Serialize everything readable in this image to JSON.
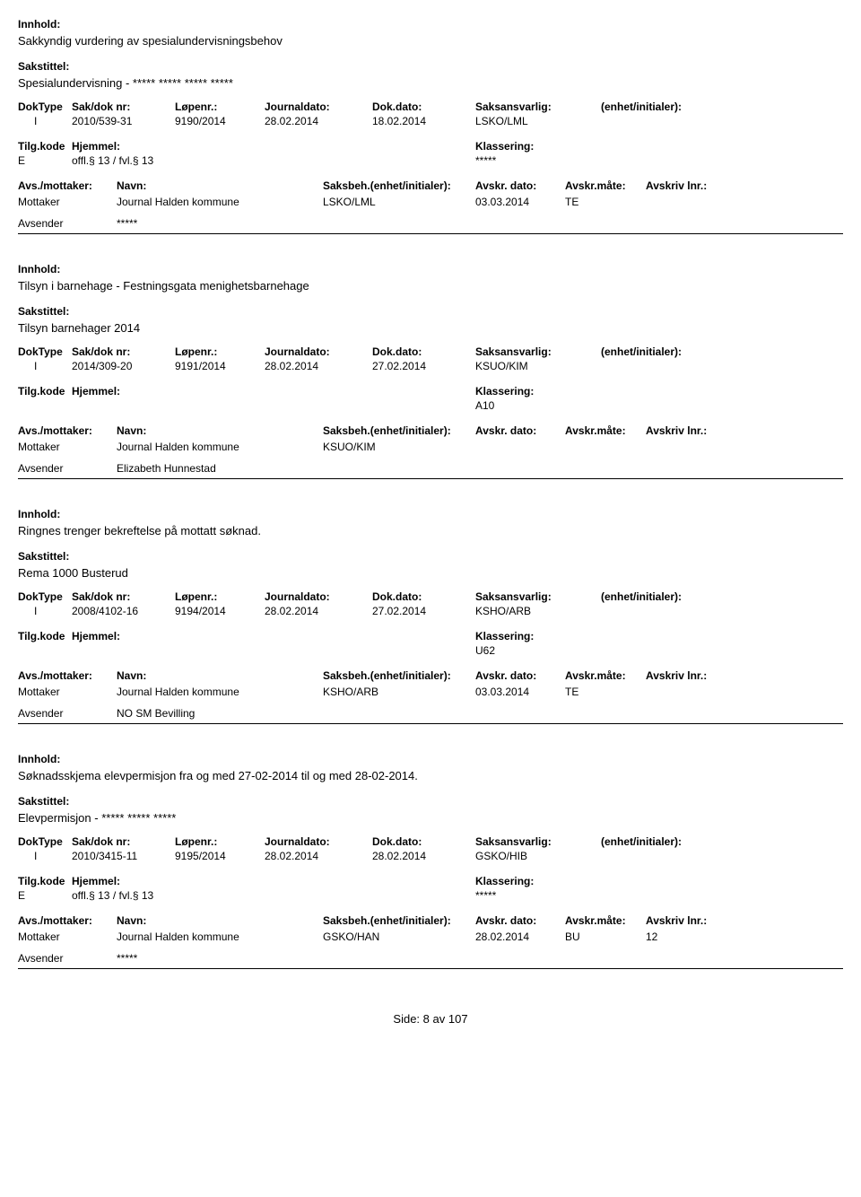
{
  "labels": {
    "innhold": "Innhold:",
    "sakstittel": "Sakstittel:",
    "doktype": "DokType",
    "saknr": "Sak/dok nr:",
    "lopenr": "Løpenr.:",
    "journaldato": "Journaldato:",
    "dokdato": "Dok.dato:",
    "saksansvarlig": "Saksansvarlig:",
    "enhet": "(enhet/initialer):",
    "tilgkode": "Tilg.kode",
    "hjemmel": "Hjemmel:",
    "klassering": "Klassering:",
    "avsmottaker": "Avs./mottaker:",
    "navn": "Navn:",
    "saksbeh": "Saksbeh.(enhet/initialer):",
    "avskrdato": "Avskr. dato:",
    "avskrmate": "Avskr.måte:",
    "avskrlnr": "Avskriv lnr.:",
    "mottaker": "Mottaker",
    "avsender": "Avsender"
  },
  "entries": [
    {
      "innhold": "Sakkyndig vurdering av spesialundervisningsbehov",
      "sakstittel": "Spesialundervisning - ***** ***** ***** *****",
      "doktype": "I",
      "saknr": "2010/539-31",
      "lopenr": "9190/2014",
      "journaldato": "28.02.2014",
      "dokdato": "18.02.2014",
      "saksansvarlig": "LSKO/LML",
      "tilgkode": "E",
      "hjemmel": "offl.§ 13 / fvl.§ 13",
      "klassering": "*****",
      "mottaker_navn": "Journal Halden kommune",
      "mottaker_saksbeh": "LSKO/LML",
      "mottaker_avskrdato": "03.03.2014",
      "mottaker_avskrmate": "TE",
      "mottaker_avskrlnr": "",
      "avsender_navn": "*****"
    },
    {
      "innhold": "Tilsyn i barnehage - Festningsgata menighetsbarnehage",
      "sakstittel": "Tilsyn barnehager 2014",
      "doktype": "I",
      "saknr": "2014/309-20",
      "lopenr": "9191/2014",
      "journaldato": "28.02.2014",
      "dokdato": "27.02.2014",
      "saksansvarlig": "KSUO/KIM",
      "tilgkode": "",
      "hjemmel": "",
      "klassering": "A10",
      "mottaker_navn": "Journal Halden kommune",
      "mottaker_saksbeh": "KSUO/KIM",
      "mottaker_avskrdato": "",
      "mottaker_avskrmate": "",
      "mottaker_avskrlnr": "",
      "avsender_navn": "Elizabeth  Hunnestad"
    },
    {
      "innhold": "Ringnes trenger bekreftelse på mottatt søknad.",
      "sakstittel": "Rema 1000 Busterud",
      "doktype": "I",
      "saknr": "2008/4102-16",
      "lopenr": "9194/2014",
      "journaldato": "28.02.2014",
      "dokdato": "27.02.2014",
      "saksansvarlig": "KSHO/ARB",
      "tilgkode": "",
      "hjemmel": "",
      "klassering": "U62",
      "mottaker_navn": "Journal Halden kommune",
      "mottaker_saksbeh": "KSHO/ARB",
      "mottaker_avskrdato": "03.03.2014",
      "mottaker_avskrmate": "TE",
      "mottaker_avskrlnr": "",
      "avsender_navn": "NO SM Bevilling"
    },
    {
      "innhold": "Søknadsskjema elevpermisjon fra og med 27-02-2014 til og med 28-02-2014.",
      "sakstittel": "Elevpermisjon - ***** ***** *****",
      "doktype": "I",
      "saknr": "2010/3415-11",
      "lopenr": "9195/2014",
      "journaldato": "28.02.2014",
      "dokdato": "28.02.2014",
      "saksansvarlig": "GSKO/HIB",
      "tilgkode": "E",
      "hjemmel": "offl.§ 13 / fvl.§ 13",
      "klassering": "*****",
      "mottaker_navn": "Journal Halden kommune",
      "mottaker_saksbeh": "GSKO/HAN",
      "mottaker_avskrdato": "28.02.2014",
      "mottaker_avskrmate": "BU",
      "mottaker_avskrlnr": "12",
      "avsender_navn": "*****"
    }
  ],
  "footer": {
    "side_label": "Side:",
    "page_num": "8",
    "av": "av",
    "page_total": "107"
  }
}
